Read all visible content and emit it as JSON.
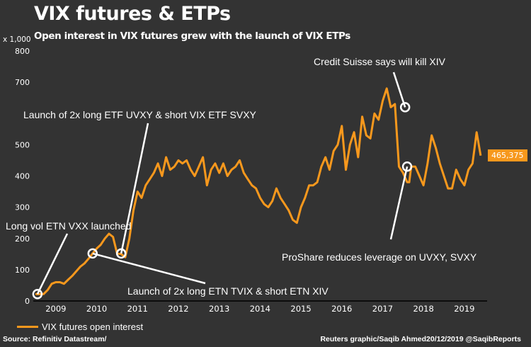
{
  "header": {
    "title": "VIX futures & ETPs",
    "subtitle": "Open interest in VIX futures grew with the launch of VIX ETPs",
    "unit": "x 1,000"
  },
  "legend": {
    "label": "VIX futures open interest"
  },
  "footer": {
    "source": "Source: Refinitiv Datastream/",
    "credit": "Reuters graphic/Saqib Ahmed20/12/2019 @SaqibReports"
  },
  "last_value_label": "465,375",
  "colors": {
    "line": "#f7981d",
    "background": "#333333",
    "annotation": "#ffffff"
  },
  "chart_data": {
    "type": "line",
    "title": "VIX futures & ETPs",
    "subtitle": "Open interest in VIX futures grew with the launch of VIX ETPs",
    "xlabel": "",
    "ylabel": "x 1,000",
    "ylim": [
      0,
      800
    ],
    "xlim": [
      2008.95,
      2020.05
    ],
    "yticks": [
      0,
      100,
      200,
      300,
      400,
      500,
      700,
      800
    ],
    "ytick_labels": [
      "0",
      "100",
      "200",
      "300",
      "400",
      "500",
      "700",
      "800"
    ],
    "xtick_labels": [
      "2009",
      "2010",
      "2011",
      "2012",
      "2013",
      "2014",
      "2015",
      "2016",
      "2017",
      "2018",
      "2019"
    ],
    "grid": false,
    "legend": "bottom-left",
    "series": [
      {
        "name": "VIX futures open interest",
        "x": [
          2009.0,
          2009.1,
          2009.2,
          2009.3,
          2009.4,
          2009.5,
          2009.6,
          2009.7,
          2009.8,
          2009.9,
          2010.0,
          2010.1,
          2010.2,
          2010.3,
          2010.4,
          2010.5,
          2010.6,
          2010.7,
          2010.8,
          2010.9,
          2011.0,
          2011.1,
          2011.2,
          2011.3,
          2011.4,
          2011.5,
          2011.6,
          2011.7,
          2011.8,
          2011.9,
          2012.0,
          2012.1,
          2012.2,
          2012.3,
          2012.4,
          2012.5,
          2012.6,
          2012.7,
          2012.8,
          2012.9,
          2013.0,
          2013.1,
          2013.2,
          2013.3,
          2013.4,
          2013.5,
          2013.6,
          2013.7,
          2013.8,
          2013.9,
          2014.0,
          2014.1,
          2014.2,
          2014.3,
          2014.4,
          2014.5,
          2014.6,
          2014.7,
          2014.8,
          2014.9,
          2015.0,
          2015.1,
          2015.2,
          2015.3,
          2015.4,
          2015.5,
          2015.6,
          2015.7,
          2015.8,
          2015.9,
          2016.0,
          2016.1,
          2016.2,
          2016.3,
          2016.4,
          2016.5,
          2016.6,
          2016.7,
          2016.8,
          2016.9,
          2017.0,
          2017.1,
          2017.2,
          2017.3,
          2017.4,
          2017.5,
          2017.6,
          2017.7,
          2017.8,
          2017.9,
          2018.0,
          2018.1,
          2018.15,
          2018.2,
          2018.3,
          2018.4,
          2018.5,
          2018.6,
          2018.7,
          2018.8,
          2018.9,
          2019.0,
          2019.1,
          2019.2,
          2019.3,
          2019.4,
          2019.5,
          2019.6,
          2019.7,
          2019.8,
          2019.9
        ],
        "values": [
          22,
          22,
          22,
          35,
          55,
          60,
          60,
          55,
          68,
          80,
          95,
          110,
          120,
          135,
          152,
          168,
          180,
          200,
          215,
          205,
          152,
          150,
          140,
          200,
          290,
          350,
          330,
          370,
          390,
          410,
          440,
          400,
          460,
          420,
          430,
          450,
          440,
          450,
          420,
          400,
          430,
          460,
          370,
          420,
          440,
          410,
          440,
          400,
          420,
          430,
          450,
          410,
          390,
          370,
          360,
          330,
          310,
          300,
          320,
          360,
          330,
          310,
          290,
          260,
          250,
          300,
          330,
          370,
          370,
          380,
          430,
          460,
          420,
          480,
          500,
          560,
          420,
          500,
          540,
          460,
          590,
          530,
          520,
          600,
          580,
          640,
          680,
          620,
          630,
          430,
          410,
          380,
          380,
          430,
          430,
          400,
          370,
          440,
          530,
          490,
          440,
          400,
          360,
          360,
          420,
          390,
          370,
          420,
          440,
          540,
          465
        ]
      }
    ],
    "annotations": [
      {
        "text": "Long vol ETN VXX launched",
        "x": 2009.05,
        "y": 22
      },
      {
        "text": "Launch of 2x long ETN TVIX & short ETN XIV",
        "x": 2010.4,
        "y": 152
      },
      {
        "text": "Launch of 2x long ETF UVXY & short VIX ETF SVXY",
        "x": 2011.1,
        "y": 152
      },
      {
        "text": "Credit Suisse says will kill XIV",
        "x": 2018.05,
        "y": 620
      },
      {
        "text": "ProShare reduces leverage on UVXY, SVXY",
        "x": 2018.1,
        "y": 430
      }
    ],
    "last_value": 465375
  }
}
